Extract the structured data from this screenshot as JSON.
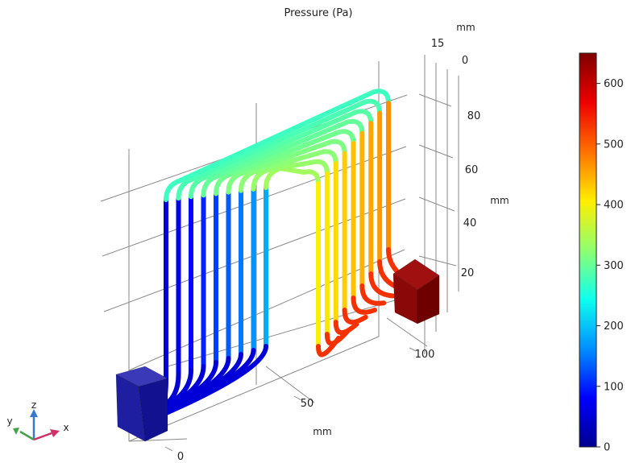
{
  "chart_data": {
    "type": "3d-surface",
    "title": "Pressure (Pa)",
    "colormap": "rainbow",
    "x_axis": {
      "label": "mm",
      "ticks": [
        "0",
        "50",
        "100"
      ]
    },
    "y_axis": {
      "label": "mm",
      "ticks": [
        "15",
        "0"
      ]
    },
    "z_axis": {
      "label": "mm",
      "ticks": [
        "20",
        "40",
        "60",
        "80"
      ]
    },
    "colorbar": {
      "min": 0,
      "max": 650,
      "ticks": [
        "0",
        "100",
        "200",
        "300",
        "400",
        "500",
        "600"
      ],
      "colors": [
        "#000090",
        "#0000ff",
        "#0090ff",
        "#0fffee",
        "#90ff70",
        "#ffee00",
        "#ff7000",
        "#ee0000",
        "#7f0000"
      ]
    },
    "triad": {
      "x": "x",
      "y": "y",
      "z": "z"
    },
    "series": [
      {
        "inlet_pressure": 650,
        "outlet_pressure": 0
      }
    ]
  }
}
